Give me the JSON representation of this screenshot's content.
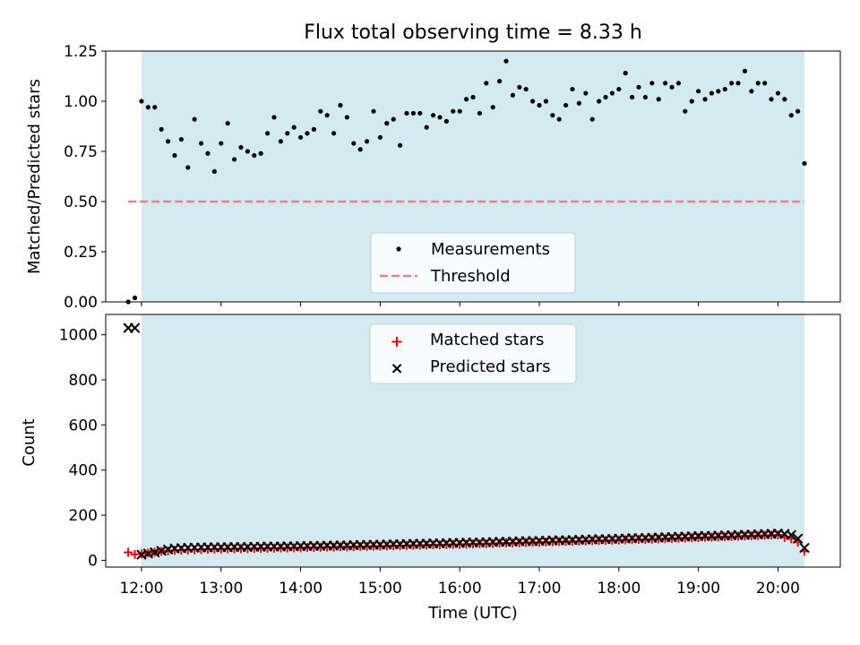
{
  "chart_data": [
    {
      "type": "scatter",
      "title": "Flux total observing time = 8.33 h",
      "xlabel": "",
      "ylabel": "Matched/Predicted stars",
      "xlim": [
        "11:33",
        "20:47"
      ],
      "ylim": [
        0,
        1.25
      ],
      "yticks": [
        "0.00",
        "0.25",
        "0.50",
        "0.75",
        "1.00",
        "1.25"
      ],
      "observing_window": [
        "12:00",
        "20:20"
      ],
      "window_color": "#d3eaf0",
      "legend_position": "lower center",
      "series": [
        {
          "name": "Measurements",
          "color": "#000000",
          "marker": "dot",
          "x": [
            "11:50",
            "11:55",
            "12:00",
            "12:05",
            "12:10",
            "12:15",
            "12:20",
            "12:25",
            "12:30",
            "12:35",
            "12:40",
            "12:45",
            "12:50",
            "12:55",
            "13:00",
            "13:05",
            "13:10",
            "13:15",
            "13:20",
            "13:25",
            "13:30",
            "13:35",
            "13:40",
            "13:45",
            "13:50",
            "13:55",
            "14:00",
            "14:05",
            "14:10",
            "14:15",
            "14:20",
            "14:25",
            "14:30",
            "14:35",
            "14:40",
            "14:45",
            "14:50",
            "14:55",
            "15:00",
            "15:05",
            "15:10",
            "15:15",
            "15:20",
            "15:25",
            "15:30",
            "15:35",
            "15:40",
            "15:45",
            "15:50",
            "15:55",
            "16:00",
            "16:05",
            "16:10",
            "16:15",
            "16:20",
            "16:25",
            "16:30",
            "16:35",
            "16:40",
            "16:45",
            "16:50",
            "16:55",
            "17:00",
            "17:05",
            "17:10",
            "17:15",
            "17:20",
            "17:25",
            "17:30",
            "17:35",
            "17:40",
            "17:45",
            "17:50",
            "17:55",
            "18:00",
            "18:05",
            "18:10",
            "18:15",
            "18:20",
            "18:25",
            "18:30",
            "18:35",
            "18:40",
            "18:45",
            "18:50",
            "18:55",
            "19:00",
            "19:05",
            "19:10",
            "19:15",
            "19:20",
            "19:25",
            "19:30",
            "19:35",
            "19:40",
            "19:45",
            "19:50",
            "19:55",
            "20:00",
            "20:05",
            "20:10",
            "20:15",
            "20:20"
          ],
          "y": [
            0.0,
            0.02,
            1.0,
            0.97,
            0.97,
            0.86,
            0.8,
            0.73,
            0.81,
            0.67,
            0.91,
            0.79,
            0.74,
            0.65,
            0.79,
            0.89,
            0.71,
            0.77,
            0.75,
            0.73,
            0.74,
            0.84,
            0.92,
            0.8,
            0.84,
            0.87,
            0.82,
            0.84,
            0.86,
            0.95,
            0.93,
            0.84,
            0.98,
            0.92,
            0.79,
            0.76,
            0.8,
            0.95,
            0.82,
            0.89,
            0.91,
            0.78,
            0.94,
            0.94,
            0.94,
            0.87,
            0.93,
            0.92,
            0.9,
            0.95,
            0.95,
            1.01,
            1.02,
            0.94,
            1.09,
            0.97,
            1.1,
            1.2,
            1.03,
            1.07,
            1.06,
            1.0,
            0.98,
            1.0,
            0.93,
            0.91,
            0.98,
            1.06,
            0.99,
            1.04,
            0.91,
            1.0,
            1.02,
            1.04,
            1.06,
            1.14,
            1.02,
            1.07,
            1.02,
            1.09,
            1.01,
            1.09,
            1.07,
            1.09,
            0.95,
            1.0,
            1.05,
            1.01,
            1.04,
            1.05,
            1.06,
            1.09,
            1.09,
            1.15,
            1.05,
            1.09,
            1.09,
            1.01,
            1.04,
            1.01,
            0.93,
            0.95,
            0.69
          ]
        },
        {
          "name": "Threshold",
          "color": "#f08080",
          "style": "dashed",
          "x": [
            "11:50",
            "20:20"
          ],
          "y": [
            0.5,
            0.5
          ]
        }
      ]
    },
    {
      "type": "scatter",
      "xlabel": "Time (UTC)",
      "ylabel": "Count",
      "xlim": [
        "11:33",
        "20:47"
      ],
      "ylim": [
        -30,
        1090
      ],
      "xticks": [
        "12:00",
        "13:00",
        "14:00",
        "15:00",
        "16:00",
        "17:00",
        "18:00",
        "19:00",
        "20:00"
      ],
      "yticks": [
        "0",
        "200",
        "400",
        "600",
        "800",
        "1000"
      ],
      "observing_window": [
        "12:00",
        "20:20"
      ],
      "window_color": "#d3eaf0",
      "legend_position": "upper center",
      "series": [
        {
          "name": "Matched stars",
          "color": "#ff0000",
          "marker": "plus",
          "x_start": "11:50",
          "x_step_minutes": 5,
          "y": [
            35,
            26,
            28,
            32,
            36,
            40,
            42,
            44,
            45,
            46,
            47,
            48,
            49,
            50,
            50,
            51,
            51,
            52,
            52,
            53,
            53,
            54,
            54,
            55,
            55,
            56,
            56,
            57,
            57,
            58,
            59,
            59,
            60,
            60,
            61,
            62,
            62,
            63,
            63,
            64,
            65,
            65,
            66,
            67,
            67,
            68,
            69,
            69,
            70,
            71,
            71,
            72,
            73,
            74,
            74,
            75,
            76,
            77,
            77,
            78,
            79,
            80,
            80,
            81,
            82,
            83,
            84,
            84,
            85,
            86,
            87,
            88,
            88,
            89,
            90,
            91,
            92,
            93,
            93,
            94,
            95,
            96,
            97,
            98,
            99,
            100,
            101,
            102,
            103,
            104,
            105,
            106,
            107,
            108,
            109,
            110,
            111,
            112,
            113,
            102,
            95,
            80,
            40
          ]
        },
        {
          "name": "Predicted stars",
          "color": "#000000",
          "marker": "x",
          "x_start": "11:50",
          "x_step_minutes": 5,
          "y": [
            1030,
            1030,
            25,
            30,
            35,
            42,
            48,
            52,
            54,
            55,
            56,
            57,
            57,
            58,
            58,
            58,
            59,
            59,
            59,
            60,
            60,
            61,
            61,
            61,
            62,
            62,
            63,
            63,
            64,
            64,
            65,
            65,
            66,
            66,
            67,
            68,
            68,
            69,
            69,
            70,
            71,
            71,
            72,
            73,
            73,
            74,
            75,
            75,
            76,
            77,
            77,
            78,
            79,
            79,
            80,
            81,
            82,
            82,
            83,
            84,
            85,
            85,
            86,
            87,
            88,
            89,
            89,
            90,
            91,
            92,
            93,
            94,
            94,
            95,
            96,
            97,
            98,
            99,
            99,
            100,
            101,
            102,
            103,
            104,
            105,
            106,
            107,
            108,
            108,
            109,
            110,
            111,
            112,
            113,
            114,
            115,
            116,
            117,
            118,
            117,
            112,
            96,
            55
          ]
        }
      ]
    }
  ]
}
